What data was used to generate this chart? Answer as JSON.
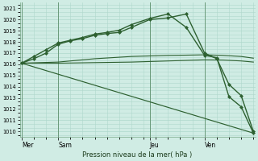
{
  "bg_color": "#d0ece4",
  "grid_color": "#aed8cc",
  "line_color": "#2d6030",
  "title": "Pression niveau de la mer( hPa )",
  "ylim": [
    1009.5,
    1021.5
  ],
  "yticks": [
    1010,
    1011,
    1012,
    1013,
    1014,
    1015,
    1016,
    1017,
    1018,
    1019,
    1020,
    1021
  ],
  "day_labels": [
    "Mer",
    "Sam",
    "Jeu",
    "Ven"
  ],
  "day_positions": [
    0,
    6,
    21,
    30
  ],
  "xlim": [
    -0.3,
    38.3
  ],
  "series": [
    {
      "name": "flat_line1",
      "x": [
        0,
        6,
        12,
        18,
        21,
        24,
        27,
        30,
        33,
        36,
        38
      ],
      "y": [
        1016.1,
        1016.1,
        1016.15,
        1016.2,
        1016.25,
        1016.3,
        1016.35,
        1016.4,
        1016.38,
        1016.3,
        1016.2
      ],
      "marker": null,
      "lw": 0.8
    },
    {
      "name": "flat_line2",
      "x": [
        0,
        6,
        12,
        18,
        21,
        24,
        27,
        30,
        33,
        36,
        38
      ],
      "y": [
        1016.1,
        1016.2,
        1016.5,
        1016.7,
        1016.75,
        1016.8,
        1016.82,
        1016.85,
        1016.8,
        1016.7,
        1016.55
      ],
      "marker": null,
      "lw": 0.8
    },
    {
      "name": "descending_straight",
      "x": [
        0,
        38
      ],
      "y": [
        1016.1,
        1009.85
      ],
      "marker": null,
      "lw": 0.85
    },
    {
      "name": "upper_marker_line1",
      "x": [
        0,
        2,
        4,
        6,
        8,
        10,
        12,
        14,
        16,
        18,
        21,
        24,
        27,
        30,
        32,
        34,
        36,
        38
      ],
      "y": [
        1016.1,
        1016.5,
        1017.0,
        1017.8,
        1018.1,
        1018.3,
        1018.6,
        1018.75,
        1018.85,
        1019.3,
        1020.0,
        1020.15,
        1020.5,
        1017.0,
        1016.5,
        1014.2,
        1013.2,
        1010.0
      ],
      "marker": "D",
      "lw": 1.0,
      "ms": 2.0
    },
    {
      "name": "upper_marker_line2",
      "x": [
        0,
        2,
        4,
        6,
        8,
        10,
        12,
        14,
        16,
        18,
        21,
        24,
        27,
        30,
        32,
        34,
        36,
        38
      ],
      "y": [
        1016.1,
        1016.7,
        1017.3,
        1017.9,
        1018.15,
        1018.4,
        1018.7,
        1018.85,
        1019.05,
        1019.55,
        1020.1,
        1020.5,
        1019.3,
        1016.8,
        1016.6,
        1013.1,
        1012.2,
        1009.85
      ],
      "marker": "D",
      "lw": 1.0,
      "ms": 2.0
    }
  ]
}
